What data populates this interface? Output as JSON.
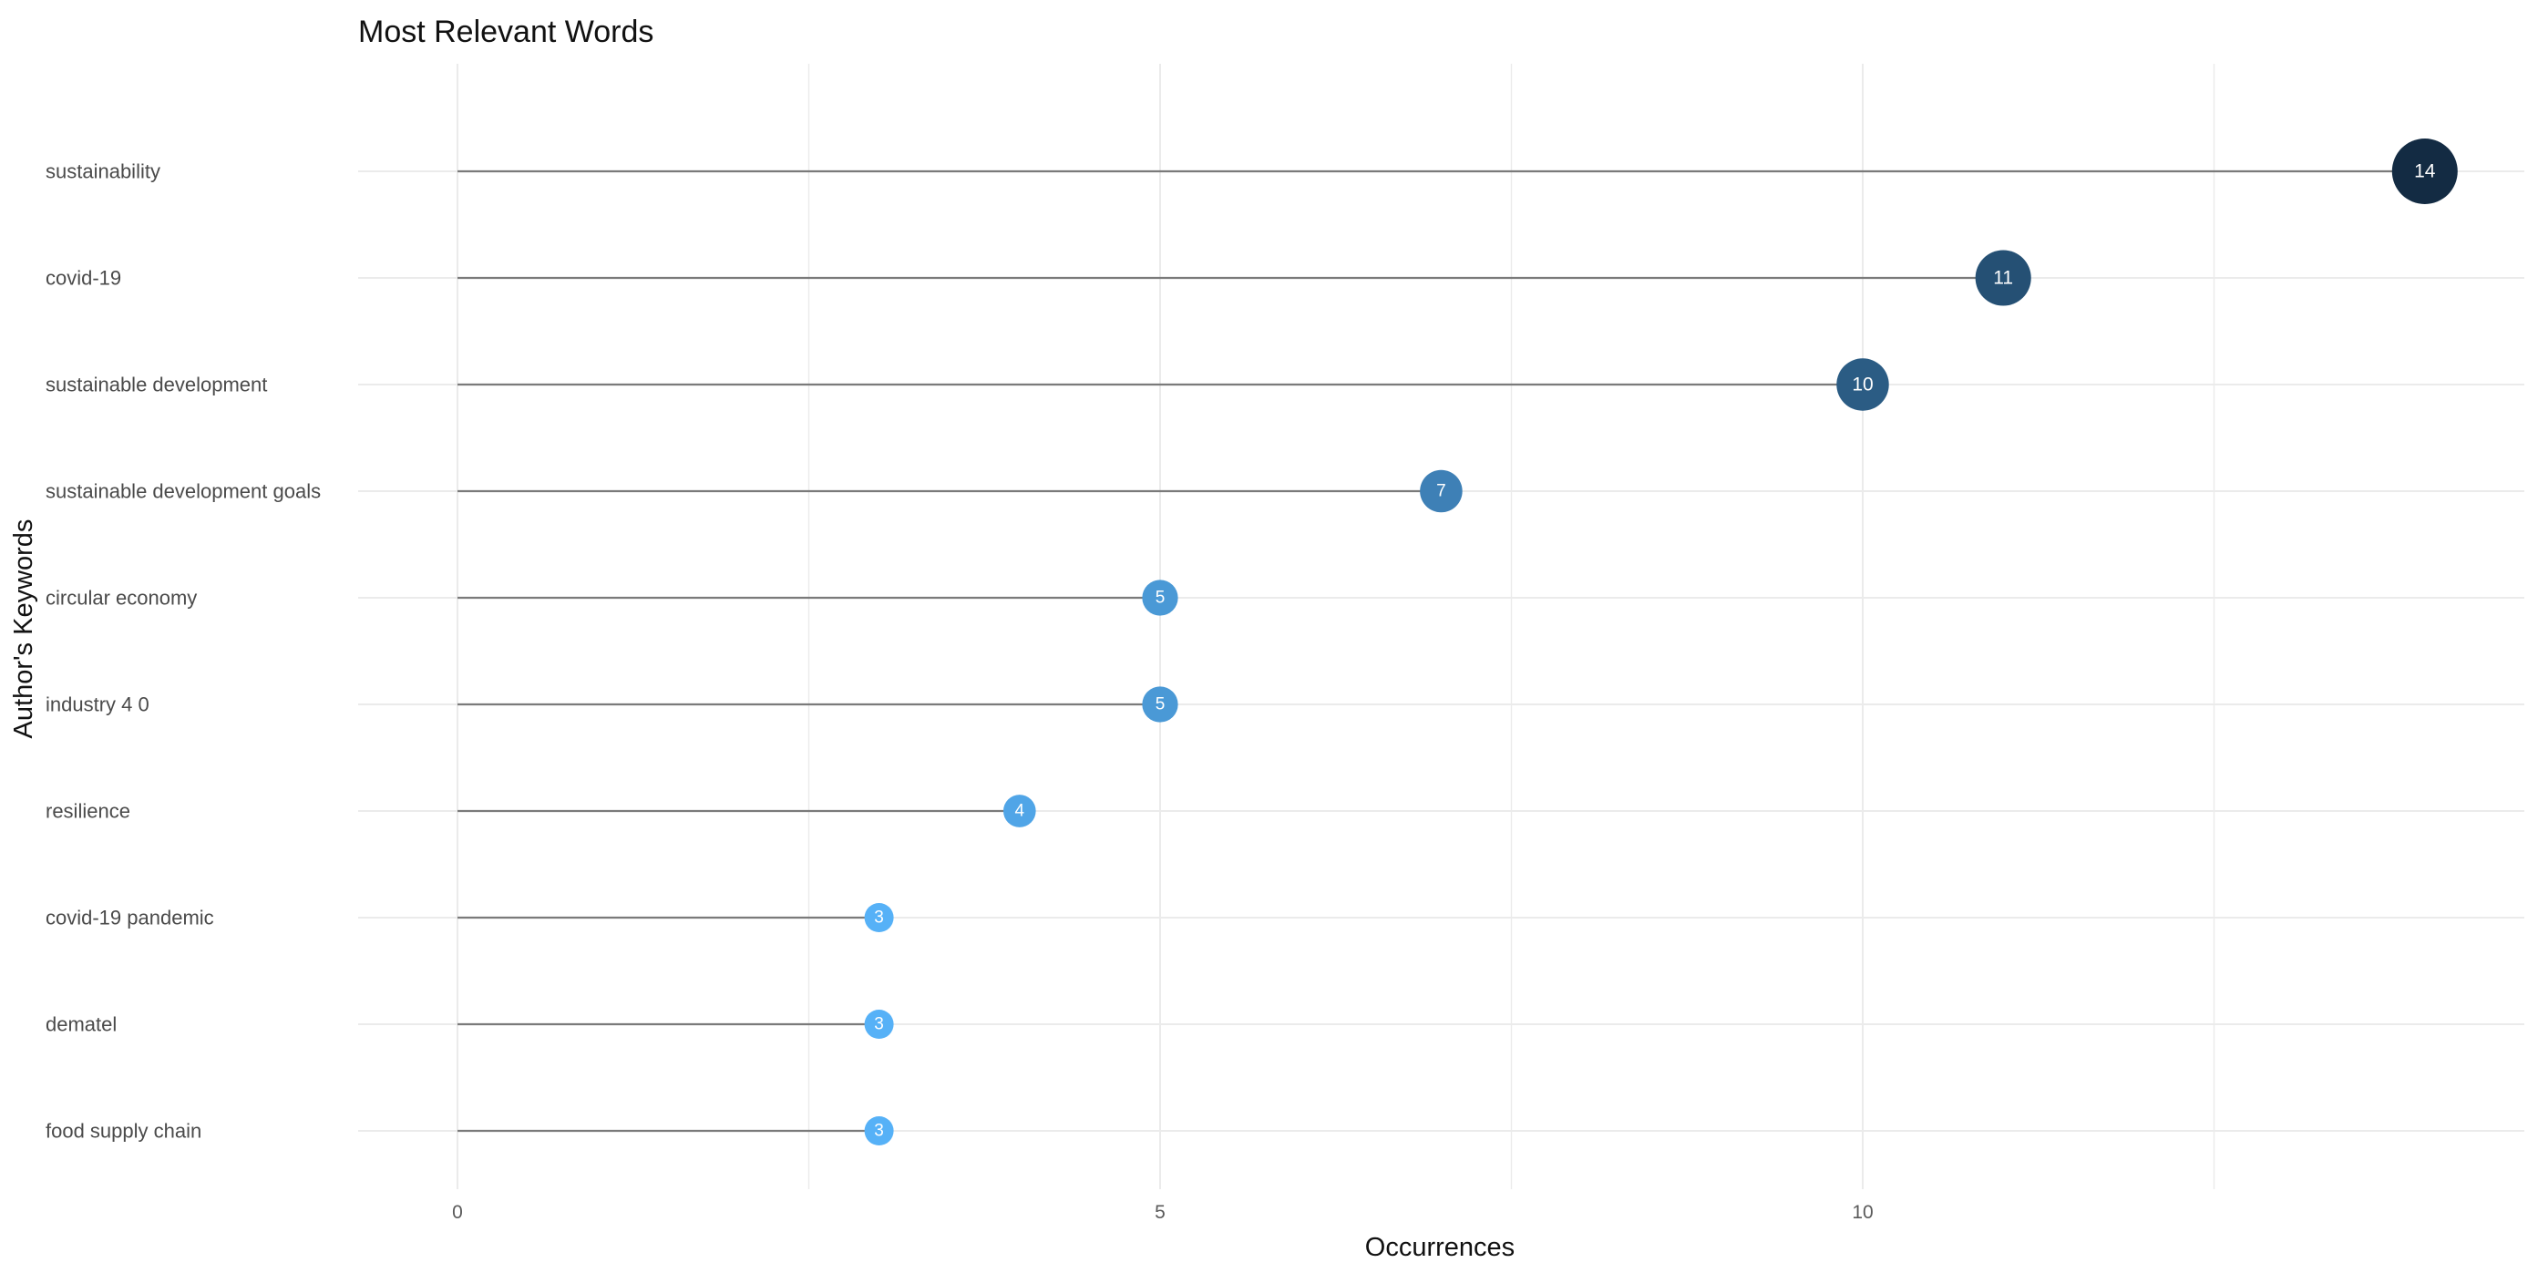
{
  "chart_data": {
    "type": "lollipop",
    "title": "Most Relevant Words",
    "xlabel": "Occurrences",
    "ylabel": "Author's Keywords",
    "categories": [
      "sustainability",
      "covid-19",
      "sustainable development",
      "sustainable development goals",
      "circular economy",
      "industry 4 0",
      "resilience",
      "covid-19 pandemic",
      "dematel",
      "food supply chain"
    ],
    "values": [
      14,
      11,
      10,
      7,
      5,
      5,
      4,
      3,
      3,
      3
    ],
    "xlim": [
      -0.7,
      14.7
    ],
    "xticks": [
      0,
      5,
      10
    ],
    "xtick_labels": [
      "0",
      "5",
      "10"
    ],
    "grid": true,
    "legend": "none",
    "colors": {
      "low": "#56B1F7",
      "high": "#132B43",
      "stem": "#7a7a7a",
      "grid": "#ebebeb",
      "label_text": "#ffffff"
    }
  }
}
